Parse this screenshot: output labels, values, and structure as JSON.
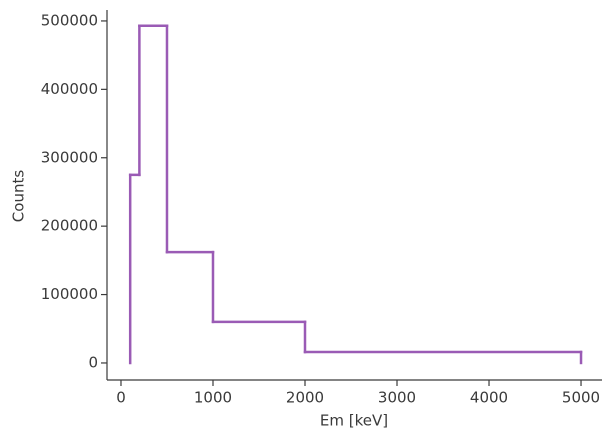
{
  "chart_data": {
    "type": "histogram",
    "xlabel": "Em [keV]",
    "ylabel": "Counts",
    "bins": [
      100,
      200,
      500,
      1000,
      2000,
      5000
    ],
    "values": [
      275000,
      493000,
      162000,
      60000,
      16000
    ],
    "color": "#9a5bb5",
    "histtype": "step",
    "xlim": [
      -152,
      5228
    ],
    "ylim": [
      -24900,
      516000
    ],
    "xticks": [
      0,
      1000,
      2000,
      3000,
      4000,
      5000
    ],
    "yticks": [
      0,
      100000,
      200000,
      300000,
      400000,
      500000
    ],
    "grid": false
  }
}
